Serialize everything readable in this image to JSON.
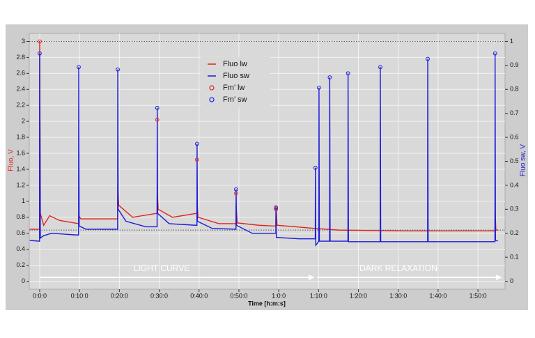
{
  "chart_data": {
    "type": "line",
    "xlabel": "Time [h:m:s]",
    "ylabel": "Fluo, V",
    "y2label": "Fluo sw, V",
    "xlim": [
      -157,
      7008
    ],
    "ylim": [
      -0.1,
      3.1
    ],
    "y2lim": [
      -0.0333,
      1.0333
    ],
    "xticks": [
      {
        "value": 0,
        "label": "0:0:0"
      },
      {
        "value": 600,
        "label": "0:10:0"
      },
      {
        "value": 1200,
        "label": "0:20:0"
      },
      {
        "value": 1800,
        "label": "0:30:0"
      },
      {
        "value": 2400,
        "label": "0:40:0"
      },
      {
        "value": 3000,
        "label": "0:50:0"
      },
      {
        "value": 3600,
        "label": "1:0:0"
      },
      {
        "value": 4200,
        "label": "1:10:0"
      },
      {
        "value": 4800,
        "label": "1:20:0"
      },
      {
        "value": 5400,
        "label": "1:30:0"
      },
      {
        "value": 6000,
        "label": "1:40:0"
      },
      {
        "value": 6600,
        "label": "1:50:0"
      }
    ],
    "yticks": [
      0,
      0.2,
      0.4,
      0.6,
      0.8,
      1,
      1.2,
      1.4,
      1.6,
      1.8,
      2,
      2.2,
      2.4,
      2.6,
      2.8,
      3
    ],
    "y2ticks": [
      0,
      0.1,
      0.2,
      0.3,
      0.4,
      0.5,
      0.6,
      0.7,
      0.8,
      0.9,
      1
    ],
    "hlines": [
      3,
      0.64
    ],
    "grid": true,
    "series": [
      {
        "name": "Fluo lw",
        "color": "#e0241b",
        "kind": "line",
        "x": [
          -150,
          -2,
          0,
          10,
          60,
          150,
          300,
          586,
          588,
          620,
          1174,
          1176,
          1190,
          1400,
          1768,
          1770,
          1785,
          2000,
          2368,
          2370,
          2385,
          2700,
          2956,
          2958,
          2975,
          3300,
          3556,
          3558,
          3575,
          4150,
          4500,
          5500,
          6856,
          6858,
          6870,
          6900
        ],
        "values": [
          0.65,
          0.65,
          3,
          0.85,
          0.7,
          0.82,
          0.76,
          0.72,
          0.82,
          0.78,
          0.78,
          1.2,
          0.95,
          0.8,
          0.85,
          1.12,
          0.9,
          0.8,
          0.85,
          1.0,
          0.8,
          0.72,
          0.72,
          0.95,
          0.73,
          0.7,
          0.69,
          0.95,
          0.7,
          0.66,
          0.64,
          0.63,
          0.63,
          0.9,
          0.64,
          0.64
        ]
      },
      {
        "name": "Fluo sw",
        "color": "#1a1adc",
        "kind": "line",
        "axis": "y2",
        "x": [
          -150,
          -2,
          0,
          10,
          60,
          180,
          540,
          586,
          588,
          595,
          700,
          1174,
          1176,
          1182,
          1300,
          1600,
          1768,
          1770,
          1776,
          1950,
          2368,
          2370,
          2376,
          2600,
          2956,
          2958,
          2964,
          3200,
          3556,
          3558,
          3564,
          3900,
          4150,
          4152,
          4158,
          4204,
          4206,
          4212,
          4366,
          4368,
          4374,
          4642,
          4644,
          4650,
          5128,
          5130,
          5136,
          5842,
          5844,
          5850,
          6856,
          6858,
          6864,
          6900
        ],
        "values": [
          0.17,
          0.167,
          0.95,
          0.18,
          0.19,
          0.2,
          0.193,
          0.193,
          0.893,
          0.23,
          0.217,
          0.217,
          0.883,
          0.3,
          0.25,
          0.227,
          0.227,
          0.723,
          0.283,
          0.24,
          0.233,
          0.573,
          0.25,
          0.22,
          0.217,
          0.383,
          0.233,
          0.2,
          0.2,
          0.307,
          0.183,
          0.177,
          0.177,
          0.473,
          0.15,
          0.167,
          0.807,
          0.167,
          0.167,
          0.85,
          0.167,
          0.167,
          0.867,
          0.165,
          0.165,
          0.893,
          0.165,
          0.165,
          0.927,
          0.165,
          0.165,
          0.95,
          0.17,
          0.168
        ]
      },
      {
        "name": "Fm’ lw",
        "color": "#e0241b",
        "kind": "marker",
        "x": [
          0,
          1770,
          2370,
          2958,
          3558
        ],
        "values": [
          3,
          2.02,
          1.52,
          1.1,
          0.9
        ]
      },
      {
        "name": "Fm’ sw",
        "color": "#1a1adc",
        "kind": "marker",
        "axis": "y2",
        "x": [
          0,
          588,
          1176,
          1770,
          2370,
          2958,
          3558,
          4152,
          4206,
          4368,
          4644,
          5130,
          5844,
          6858
        ],
        "values": [
          0.95,
          0.893,
          0.883,
          0.723,
          0.573,
          0.383,
          0.307,
          0.473,
          0.807,
          0.85,
          0.867,
          0.893,
          0.927,
          0.95
        ]
      }
    ],
    "annotations": [
      "LIGHT CURVE",
      "DARK RELAXATION"
    ]
  }
}
